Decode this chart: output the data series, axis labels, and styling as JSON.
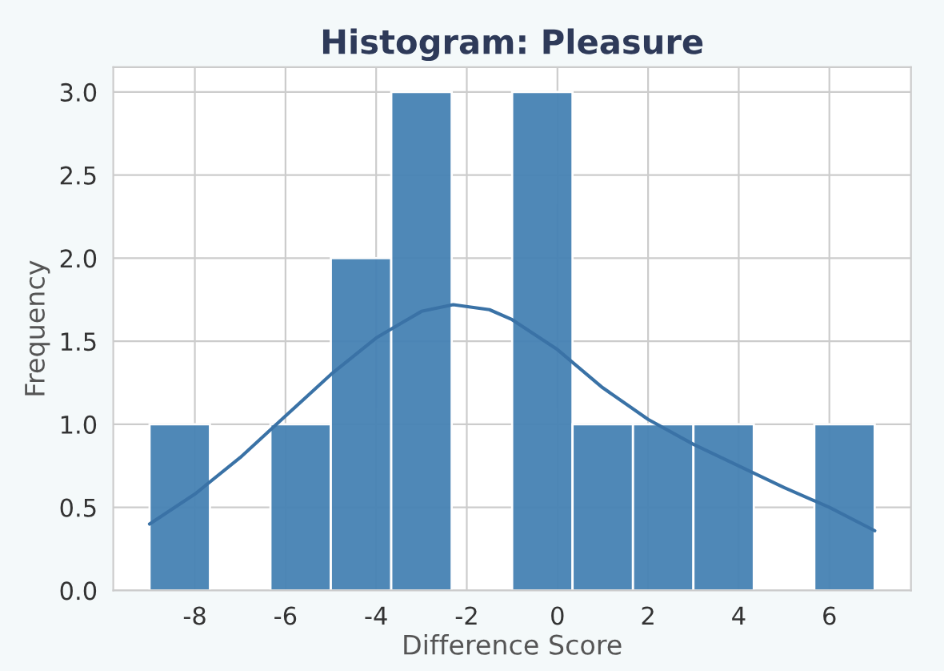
{
  "chart_data": {
    "type": "histogram",
    "title": "Histogram: Pleasure",
    "xlabel": "Difference Score",
    "ylabel": "Frequency",
    "series": [
      {
        "color": "#4682b4",
        "bins": [
          -9,
          -7.667,
          -6.333,
          -5,
          -3.667,
          -2.333,
          -1,
          0.333,
          1.667,
          3,
          4.333,
          5.667,
          7
        ],
        "values": [
          1,
          0,
          1,
          2,
          3,
          0,
          3,
          1,
          1,
          1,
          0,
          1
        ]
      },
      {
        "type": "line",
        "color": "#3a72a6",
        "x": [
          -9,
          -8,
          -7,
          -6,
          -5,
          -4,
          -3,
          -2.3,
          -1.5,
          -1,
          0,
          1,
          2,
          3,
          4,
          5,
          6,
          7
        ],
        "values": [
          0.4,
          0.58,
          0.8,
          1.05,
          1.3,
          1.52,
          1.68,
          1.72,
          1.69,
          1.63,
          1.45,
          1.22,
          1.03,
          0.88,
          0.75,
          0.62,
          0.5,
          0.36
        ]
      }
    ],
    "xlim": [
      -9.8,
      7.8
    ],
    "ylim": [
      0,
      3.15
    ],
    "xticks": [
      -8,
      -6,
      -4,
      -2,
      0,
      2,
      4,
      6
    ],
    "yticks": [
      {
        "value": 0,
        "label": "0.0"
      },
      {
        "value": 0.5,
        "label": "0.5"
      },
      {
        "value": 1,
        "label": "1.0"
      },
      {
        "value": 1.5,
        "label": "1.5"
      },
      {
        "value": 2,
        "label": "2.0"
      },
      {
        "value": 2.5,
        "label": "2.5"
      },
      {
        "value": 3,
        "label": "3.0"
      }
    ],
    "grid": true,
    "legend": false
  }
}
